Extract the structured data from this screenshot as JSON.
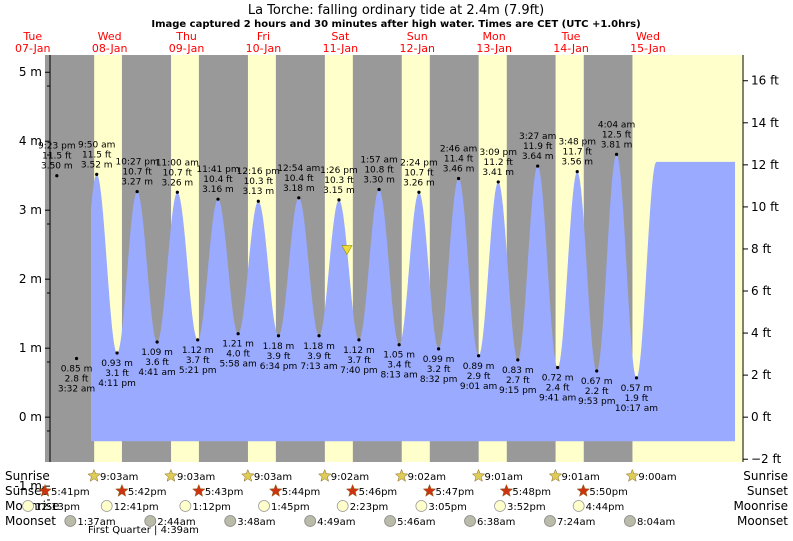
{
  "title": "La Torche: falling  ordinary tide at 2.4m (7.9ft)",
  "subtitle": "Image captured 2 hours and 30 minutes after high water. Times are CET (UTC +1.0hrs)",
  "days": [
    {
      "dow": "Tue",
      "date": "07-Jan"
    },
    {
      "dow": "Wed",
      "date": "08-Jan"
    },
    {
      "dow": "Thu",
      "date": "09-Jan"
    },
    {
      "dow": "Fri",
      "date": "10-Jan"
    },
    {
      "dow": "Sat",
      "date": "11-Jan"
    },
    {
      "dow": "Sun",
      "date": "12-Jan"
    },
    {
      "dow": "Mon",
      "date": "13-Jan"
    },
    {
      "dow": "Tue",
      "date": "14-Jan"
    },
    {
      "dow": "Wed",
      "date": "15-Jan"
    }
  ],
  "left_axis_ticks": [
    "-1 m",
    "0 m",
    "1 m",
    "2 m",
    "3 m",
    "4 m",
    "5 m"
  ],
  "right_axis_ticks": [
    "−2 ft",
    "0 ft",
    "2 ft",
    "4 ft",
    "6 ft",
    "8 ft",
    "10 ft",
    "12 ft",
    "14 ft",
    "16 ft"
  ],
  "colors": {
    "day": "#ffffcc",
    "night": "#999999",
    "water": "#99aaff",
    "date_text": "#ff0000",
    "star": "#cc3311",
    "sunrise_star": "#ddcc55",
    "moon": "#ffffcc",
    "moonset": "#bbbbaa"
  },
  "chart_data": {
    "type": "area",
    "title": "La Torche: falling  ordinary tide at 2.4m (7.9ft)",
    "ylabel_left": "m",
    "ylabel_right": "ft",
    "ylim_m": [
      -0.65,
      5.25
    ],
    "ylim_ft": [
      -2.1,
      17.2
    ],
    "current_level_m": 2.4,
    "extremes": [
      {
        "type": "high",
        "time": "9:23 pm",
        "ft": "11.5 ft",
        "m": "3.50 m",
        "value": 3.5
      },
      {
        "type": "low",
        "time": "3:32 am",
        "ft": "2.8 ft",
        "m": "0.85 m",
        "value": 0.85
      },
      {
        "type": "high",
        "time": "9:50 am",
        "ft": "11.5 ft",
        "m": "3.52 m",
        "value": 3.52
      },
      {
        "type": "low",
        "time": "4:11 pm",
        "ft": "3.1 ft",
        "m": "0.93 m",
        "value": 0.93
      },
      {
        "type": "high",
        "time": "10:27 pm",
        "ft": "10.7 ft",
        "m": "3.27 m",
        "value": 3.27
      },
      {
        "type": "low",
        "time": "4:41 am",
        "ft": "3.6 ft",
        "m": "1.09 m",
        "value": 1.09
      },
      {
        "type": "high",
        "time": "11:00 am",
        "ft": "10.7 ft",
        "m": "3.26 m",
        "value": 3.26
      },
      {
        "type": "low",
        "time": "5:21 pm",
        "ft": "3.7 ft",
        "m": "1.12 m",
        "value": 1.12
      },
      {
        "type": "high",
        "time": "11:41 pm",
        "ft": "10.4 ft",
        "m": "3.16 m",
        "value": 3.16
      },
      {
        "type": "low",
        "time": "5:58 am",
        "ft": "4.0 ft",
        "m": "1.21 m",
        "value": 1.21
      },
      {
        "type": "high",
        "time": "12:16 pm",
        "ft": "10.3 ft",
        "m": "3.13 m",
        "value": 3.13
      },
      {
        "type": "low",
        "time": "6:34 pm",
        "ft": "3.9 ft",
        "m": "1.18 m",
        "value": 1.18
      },
      {
        "type": "high",
        "time": "12:54 am",
        "ft": "10.4 ft",
        "m": "3.18 m",
        "value": 3.18
      },
      {
        "type": "low",
        "time": "7:13 am",
        "ft": "3.9 ft",
        "m": "1.18 m",
        "value": 1.18
      },
      {
        "type": "high",
        "time": "1:26 pm",
        "ft": "10.3 ft",
        "m": "3.15 m",
        "value": 3.15
      },
      {
        "type": "low",
        "time": "7:40 pm",
        "ft": "3.7 ft",
        "m": "1.12 m",
        "value": 1.12
      },
      {
        "type": "high",
        "time": "1:57 am",
        "ft": "10.8 ft",
        "m": "3.30 m",
        "value": 3.3
      },
      {
        "type": "low",
        "time": "8:13 am",
        "ft": "3.4 ft",
        "m": "1.05 m",
        "value": 1.05
      },
      {
        "type": "high",
        "time": "2:24 pm",
        "ft": "10.7 ft",
        "m": "3.26 m",
        "value": 3.26
      },
      {
        "type": "low",
        "time": "8:32 pm",
        "ft": "3.2 ft",
        "m": "0.99 m",
        "value": 0.99
      },
      {
        "type": "high",
        "time": "2:46 am",
        "ft": "11.4 ft",
        "m": "3.46 m",
        "value": 3.46
      },
      {
        "type": "low",
        "time": "9:01 am",
        "ft": "2.9 ft",
        "m": "0.89 m",
        "value": 0.89
      },
      {
        "type": "high",
        "time": "3:09 pm",
        "ft": "11.2 ft",
        "m": "3.41 m",
        "value": 3.41
      },
      {
        "type": "low",
        "time": "9:15 pm",
        "ft": "2.7 ft",
        "m": "0.83 m",
        "value": 0.83
      },
      {
        "type": "high",
        "time": "3:27 am",
        "ft": "11.9 ft",
        "m": "3.64 m",
        "value": 3.64
      },
      {
        "type": "low",
        "time": "9:41 am",
        "ft": "2.4 ft",
        "m": "0.72 m",
        "value": 0.72
      },
      {
        "type": "high",
        "time": "3:48 pm",
        "ft": "11.7 ft",
        "m": "3.56 m",
        "value": 3.56
      },
      {
        "type": "low",
        "time": "9:53 pm",
        "ft": "2.2 ft",
        "m": "0.67 m",
        "value": 0.67
      },
      {
        "type": "high",
        "time": "4:04 am",
        "ft": "12.5 ft",
        "m": "3.81 m",
        "value": 3.81
      },
      {
        "type": "low",
        "time": "10:17 am",
        "ft": "1.9 ft",
        "m": "0.57 m",
        "value": 0.57
      }
    ]
  },
  "astro": {
    "labels": {
      "sunrise": "Sunrise",
      "sunset": "Sunset",
      "moonrise": "Moonrise",
      "moonset": "Moonset"
    },
    "sunrise": [
      "9:03am",
      "9:03am",
      "9:03am",
      "9:02am",
      "9:02am",
      "9:01am",
      "9:01am",
      "9:00am"
    ],
    "sunset": [
      "5:41pm",
      "5:42pm",
      "5:43pm",
      "5:44pm",
      "5:46pm",
      "5:47pm",
      "5:48pm",
      "5:50pm"
    ],
    "moonrise": [
      "12:13pm",
      "12:41pm",
      "1:12pm",
      "1:45pm",
      "2:23pm",
      "3:05pm",
      "3:52pm",
      "4:44pm"
    ],
    "moonset": [
      "1:37am",
      "2:44am",
      "3:48am",
      "4:49am",
      "5:46am",
      "6:38am",
      "7:24am",
      "8:04am"
    ],
    "phase": "First Quarter | 4:39am"
  }
}
